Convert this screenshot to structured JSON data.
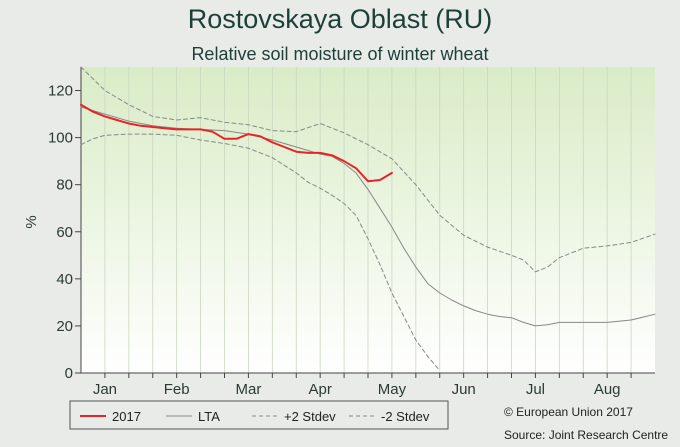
{
  "chart_data": {
    "type": "line",
    "title": "Rostovskaya Oblast (RU)",
    "subtitle": "Relative soil moisture of winter wheat",
    "ylabel": "%",
    "ylim": [
      0,
      130
    ],
    "yticks": [
      0,
      20,
      40,
      60,
      80,
      100,
      120
    ],
    "xlim": [
      1,
      25
    ],
    "categories": [
      "Jan",
      "Feb",
      "Mar",
      "Apr",
      "May",
      "Jun",
      "Jul",
      "Aug"
    ],
    "category_positions": [
      2,
      5,
      8,
      11,
      14,
      17,
      20,
      23
    ],
    "series": [
      {
        "name": "2017",
        "color": "#e8232a",
        "style": "solid",
        "x": [
          1,
          1.5,
          2,
          2.5,
          3,
          3.5,
          4,
          4.5,
          5,
          5.5,
          6,
          6.5,
          7,
          7.5,
          8,
          8.5,
          9,
          9.5,
          10,
          10.5,
          11,
          11.5,
          12,
          12.5,
          13,
          13.5,
          14
        ],
        "values": [
          114,
          111,
          109,
          107.5,
          106,
          105,
          104.5,
          104,
          103.5,
          103.5,
          103.5,
          102.5,
          99.5,
          99.5,
          101.5,
          100.5,
          98,
          96,
          94,
          93.5,
          93.5,
          92.5,
          90,
          87,
          81.5,
          82,
          85
        ]
      },
      {
        "name": "LTA",
        "color": "#888888",
        "style": "solid",
        "x": [
          1,
          2,
          3,
          4,
          5,
          6,
          7,
          8,
          9,
          10,
          11,
          11.5,
          12,
          12.5,
          13,
          13.5,
          14,
          14.5,
          15,
          15.5,
          16,
          16.5,
          17,
          17.5,
          18,
          18.5,
          19,
          19.5,
          20,
          20.5,
          21,
          22,
          23,
          24,
          25
        ],
        "values": [
          113,
          110,
          107,
          105,
          104,
          103.5,
          103,
          101.5,
          99,
          96,
          93,
          92,
          89,
          85,
          78,
          70,
          62,
          53,
          45,
          38,
          34,
          31,
          28.5,
          26.5,
          25,
          24,
          23.5,
          21.5,
          20,
          20.5,
          21.5,
          21.5,
          21.5,
          22.5,
          25
        ]
      },
      {
        "name": "+2 Stdev",
        "color": "#888888",
        "style": "dashed",
        "x": [
          1,
          2,
          3,
          4,
          5,
          6,
          7,
          8,
          9,
          10,
          11,
          12,
          13,
          14,
          15,
          16,
          17,
          18,
          19,
          19.5,
          20,
          20.5,
          21,
          22,
          23,
          24,
          25
        ],
        "values": [
          130,
          120,
          114,
          109,
          107.5,
          108.5,
          106.5,
          105.5,
          103,
          102.5,
          106,
          102,
          97,
          91,
          80,
          67,
          58.5,
          53.5,
          50,
          48,
          43,
          45,
          49,
          53,
          54,
          55.5,
          59
        ]
      },
      {
        "name": "-2 Stdev",
        "color": "#888888",
        "style": "dashed",
        "x": [
          1,
          1.5,
          2,
          3,
          4,
          5,
          6,
          7,
          8,
          9,
          10,
          10.5,
          11,
          11.5,
          12,
          12.5,
          13,
          13.5,
          14,
          14.5,
          15,
          15.5,
          16
        ],
        "values": [
          97,
          99.5,
          101,
          101.5,
          101.5,
          101,
          99,
          97.5,
          95.5,
          91.5,
          85,
          81,
          78.5,
          75.5,
          72,
          67,
          57,
          46,
          34,
          24,
          14,
          7,
          1
        ]
      }
    ],
    "legend_position": "bottom-left",
    "credits": [
      "© European Union 2017",
      "Source: Joint Research Centre"
    ]
  }
}
